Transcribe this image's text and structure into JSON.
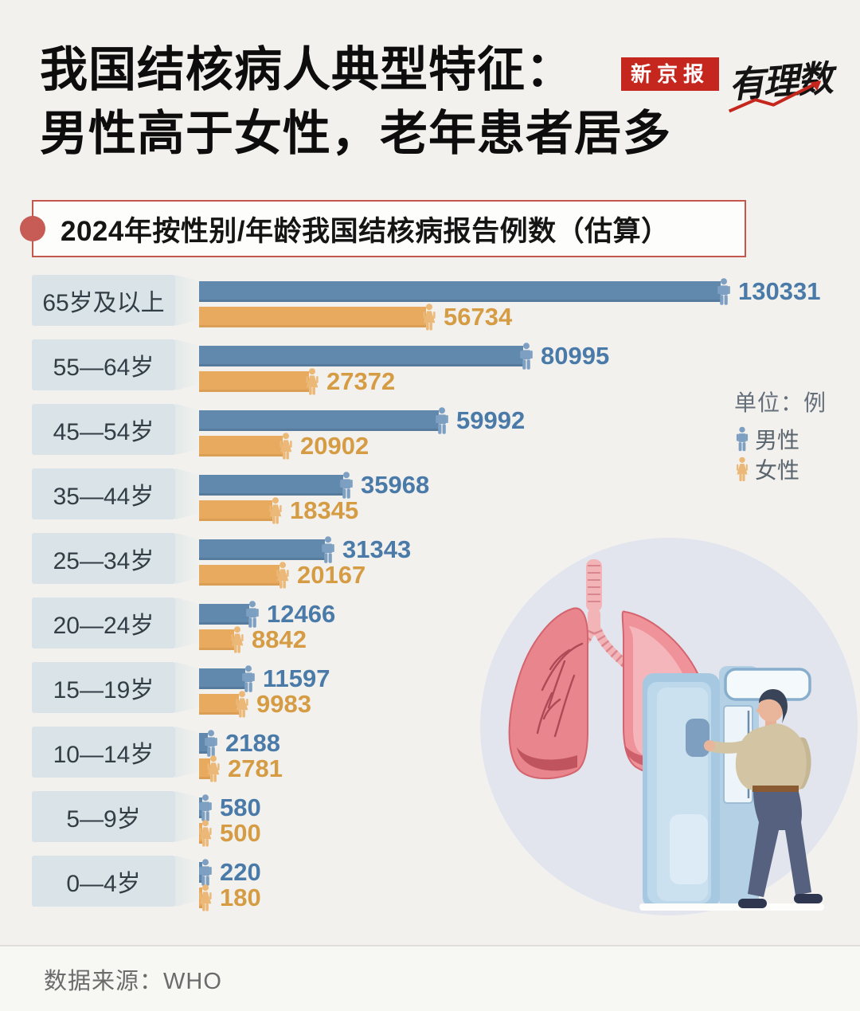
{
  "header": {
    "title_lines": [
      "我国结核病人典型特征：",
      "男性高于女性，老年患者居多"
    ],
    "brand": {
      "newspaper": "新京报",
      "column": "有理数"
    }
  },
  "subtitle": "2024年按性别/年龄我国结核病报告例数（估算）",
  "legend": {
    "unit": "单位：例",
    "male": "男性",
    "female": "女性"
  },
  "footer": {
    "source": "数据来源：WHO"
  },
  "colors": {
    "background": "#f2f1ee",
    "male_bar": "#6189ae",
    "female_bar": "#e7aa5f",
    "male_value_text": "#4a7aa8",
    "female_value_text": "#d59c44",
    "male_icon": "#7da0c2",
    "female_icon": "#ebb878",
    "label_box": "#d9e3e8",
    "subtitle_border": "#c4584f",
    "bullet_red": "#c75b55",
    "brand_red": "#c5261d"
  },
  "chart_data": {
    "type": "bar",
    "orientation": "horizontal",
    "title": "2024年按性别/年龄我国结核病报告例数（估算）",
    "unit": "例",
    "categories": [
      "65岁及以上",
      "55—64岁",
      "45—54岁",
      "35—44岁",
      "25—34岁",
      "20—24岁",
      "15—19岁",
      "10—14岁",
      "5—9岁",
      "0—4岁"
    ],
    "series": [
      {
        "name": "男性",
        "values": [
          130331,
          80995,
          59992,
          35968,
          31343,
          12466,
          11597,
          2188,
          580,
          220
        ]
      },
      {
        "name": "女性",
        "values": [
          56734,
          27372,
          20902,
          18345,
          20167,
          8842,
          9983,
          2781,
          500,
          180
        ]
      }
    ],
    "xlim": [
      0,
      130331
    ],
    "grid": false,
    "legend_position": "right",
    "value_labels": "end-of-bar"
  }
}
